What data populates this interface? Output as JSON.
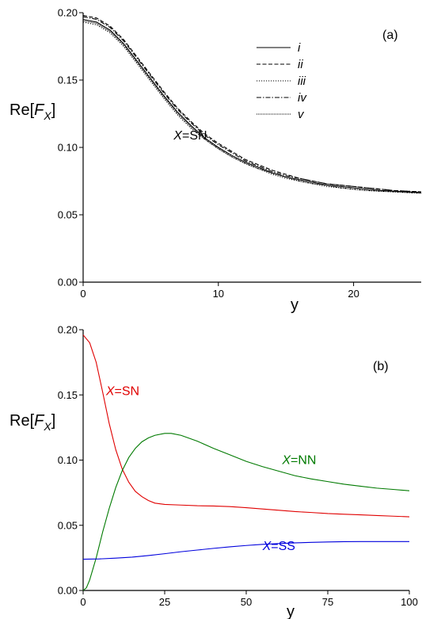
{
  "chart_data": [
    {
      "type": "line",
      "panel_label": "(a)",
      "xlabel": "y",
      "ylabel": {
        "base": "Re[",
        "var": "F",
        "sub": "X",
        "close": "]"
      },
      "xlim": [
        0,
        25
      ],
      "ylim": [
        0,
        0.2
      ],
      "xticks": [
        0,
        10,
        20
      ],
      "xtick_labels": [
        "0",
        "10",
        "20"
      ],
      "yticks": [
        0,
        0.05,
        0.1,
        0.15,
        0.2
      ],
      "ytick_labels": [
        "0.00",
        "0.05",
        "0.10",
        "0.15",
        "0.20"
      ],
      "legend_position": "top-right",
      "annotation": {
        "var": "X",
        "text": "=SN",
        "x": 8.8,
        "y": 0.106
      },
      "series": [
        {
          "name": "i",
          "color": "#000000",
          "dash": "solid",
          "x": [
            0,
            1,
            2,
            3,
            4,
            5,
            6,
            7,
            8,
            9,
            10,
            11,
            12,
            13,
            14,
            15,
            16,
            17,
            18,
            19,
            20,
            21,
            22,
            23,
            24,
            25
          ],
          "y": [
            0.195,
            0.193,
            0.187,
            0.177,
            0.164,
            0.151,
            0.138,
            0.126,
            0.116,
            0.107,
            0.1,
            0.094,
            0.089,
            0.085,
            0.081,
            0.078,
            0.076,
            0.074,
            0.072,
            0.071,
            0.07,
            0.069,
            0.068,
            0.0675,
            0.067,
            0.0665
          ]
        },
        {
          "name": "ii",
          "color": "#000000",
          "dash": "dashed",
          "x": [
            0,
            1,
            2,
            3,
            4,
            5,
            6,
            7,
            8,
            9,
            10,
            11,
            12,
            13,
            14,
            15,
            16,
            17,
            18,
            19,
            20,
            21,
            22,
            23,
            24,
            25
          ],
          "y": [
            0.198,
            0.196,
            0.19,
            0.18,
            0.167,
            0.154,
            0.141,
            0.129,
            0.119,
            0.11,
            0.103,
            0.097,
            0.091,
            0.087,
            0.083,
            0.08,
            0.077,
            0.075,
            0.073,
            0.072,
            0.071,
            0.07,
            0.069,
            0.068,
            0.0675,
            0.067
          ]
        },
        {
          "name": "iii",
          "color": "#000000",
          "dash": "dotted",
          "x": [
            0,
            1,
            2,
            3,
            4,
            5,
            6,
            7,
            8,
            9,
            10,
            11,
            12,
            13,
            14,
            15,
            16,
            17,
            18,
            19,
            20,
            21,
            22,
            23,
            24,
            25
          ],
          "y": [
            0.193,
            0.191,
            0.185,
            0.175,
            0.162,
            0.149,
            0.136,
            0.124,
            0.114,
            0.106,
            0.099,
            0.093,
            0.088,
            0.084,
            0.08,
            0.077,
            0.075,
            0.073,
            0.071,
            0.07,
            0.069,
            0.068,
            0.0675,
            0.067,
            0.0665,
            0.066
          ]
        },
        {
          "name": "iv",
          "color": "#000000",
          "dash": "dashdot",
          "x": [
            0,
            1,
            2,
            3,
            4,
            5,
            6,
            7,
            8,
            9,
            10,
            11,
            12,
            13,
            14,
            15,
            16,
            17,
            18,
            19,
            20,
            21,
            22,
            23,
            24,
            25
          ],
          "y": [
            0.197,
            0.195,
            0.189,
            0.179,
            0.166,
            0.153,
            0.14,
            0.128,
            0.118,
            0.109,
            0.102,
            0.096,
            0.09,
            0.086,
            0.082,
            0.079,
            0.077,
            0.075,
            0.073,
            0.072,
            0.071,
            0.07,
            0.069,
            0.068,
            0.0675,
            0.067
          ]
        },
        {
          "name": "v",
          "color": "#000000",
          "dash": "dense-dotted",
          "x": [
            0,
            1,
            2,
            3,
            4,
            5,
            6,
            7,
            8,
            9,
            10,
            11,
            12,
            13,
            14,
            15,
            16,
            17,
            18,
            19,
            20,
            21,
            22,
            23,
            24,
            25
          ],
          "y": [
            0.194,
            0.192,
            0.186,
            0.176,
            0.163,
            0.15,
            0.137,
            0.125,
            0.115,
            0.106,
            0.099,
            0.093,
            0.088,
            0.084,
            0.081,
            0.078,
            0.075,
            0.073,
            0.072,
            0.07,
            0.069,
            0.068,
            0.0675,
            0.067,
            0.0665,
            0.066
          ]
        }
      ]
    },
    {
      "type": "line",
      "panel_label": "(b)",
      "xlabel": "y",
      "ylabel": {
        "base": "Re[",
        "var": "F",
        "sub": "X",
        "close": "]"
      },
      "xlim": [
        0,
        100
      ],
      "ylim": [
        0,
        0.2
      ],
      "xticks": [
        0,
        25,
        50,
        75,
        100
      ],
      "xtick_labels": [
        "0",
        "25",
        "50",
        "75",
        "100"
      ],
      "yticks": [
        0,
        0.05,
        0.1,
        0.15,
        0.2
      ],
      "ytick_labels": [
        "0.00",
        "0.05",
        "0.10",
        "0.15",
        "0.20"
      ],
      "series": [
        {
          "var": "X",
          "label": "=SN",
          "color": "#e00000",
          "label_at": [
            7,
            0.15
          ],
          "x": [
            0,
            2,
            4,
            6,
            8,
            10,
            12,
            14,
            16,
            18,
            20,
            22,
            25,
            30,
            35,
            40,
            45,
            50,
            55,
            60,
            65,
            70,
            75,
            80,
            85,
            90,
            95,
            100
          ],
          "y": [
            0.196,
            0.19,
            0.175,
            0.152,
            0.128,
            0.108,
            0.093,
            0.083,
            0.076,
            0.072,
            0.069,
            0.067,
            0.066,
            0.0655,
            0.065,
            0.0648,
            0.0643,
            0.0635,
            0.0625,
            0.0615,
            0.0605,
            0.0598,
            0.059,
            0.0585,
            0.058,
            0.0575,
            0.057,
            0.0565
          ]
        },
        {
          "var": "X",
          "label": "=NN",
          "color": "#007a00",
          "label_at": [
            61,
            0.097
          ],
          "x": [
            0,
            1,
            2,
            4,
            6,
            8,
            10,
            12,
            14,
            16,
            18,
            20,
            22,
            25,
            27,
            30,
            35,
            40,
            45,
            50,
            55,
            60,
            65,
            70,
            75,
            80,
            85,
            90,
            95,
            100
          ],
          "y": [
            0.0,
            0.002,
            0.008,
            0.025,
            0.045,
            0.063,
            0.079,
            0.092,
            0.102,
            0.109,
            0.114,
            0.117,
            0.119,
            0.1205,
            0.1205,
            0.119,
            0.1145,
            0.109,
            0.104,
            0.099,
            0.095,
            0.0915,
            0.088,
            0.0855,
            0.0835,
            0.0815,
            0.08,
            0.0785,
            0.0775,
            0.0765
          ]
        },
        {
          "var": "X",
          "label": "=SS",
          "color": "#0000dd",
          "label_at": [
            55,
            0.031
          ],
          "x": [
            0,
            5,
            10,
            15,
            20,
            25,
            30,
            35,
            40,
            45,
            50,
            55,
            60,
            65,
            70,
            75,
            80,
            85,
            90,
            95,
            100
          ],
          "y": [
            0.024,
            0.0242,
            0.0248,
            0.0256,
            0.0268,
            0.0282,
            0.0297,
            0.031,
            0.0323,
            0.0335,
            0.0345,
            0.0354,
            0.036,
            0.0365,
            0.0369,
            0.0372,
            0.0374,
            0.0375,
            0.0375,
            0.0375,
            0.0375
          ]
        }
      ]
    }
  ]
}
